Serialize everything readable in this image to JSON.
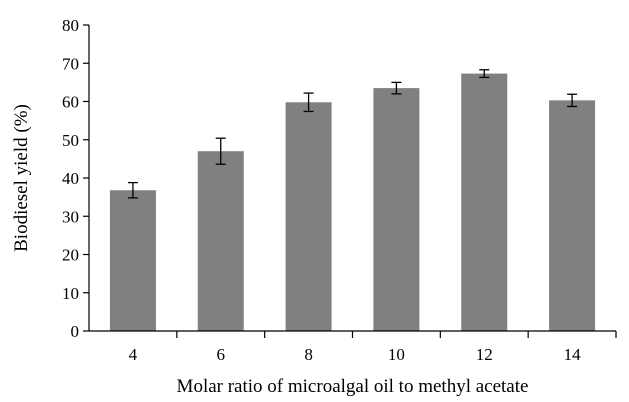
{
  "chart_data": {
    "type": "bar",
    "title": "",
    "xlabel": "Molar ratio of microalgal oil to methyl acetate",
    "ylabel": "Biodiesel yield (%)",
    "categories": [
      "4",
      "6",
      "8",
      "10",
      "12",
      "14"
    ],
    "values": [
      36.8,
      47.0,
      59.8,
      63.5,
      67.3,
      60.3
    ],
    "error": [
      2.0,
      3.4,
      2.4,
      1.5,
      1.0,
      1.6
    ],
    "ylim": [
      0,
      80
    ],
    "yticks": [
      "0",
      "10",
      "20",
      "30",
      "40",
      "50",
      "60",
      "70",
      "80"
    ],
    "grid": false,
    "legend": "none",
    "bar_color": "#808080"
  }
}
